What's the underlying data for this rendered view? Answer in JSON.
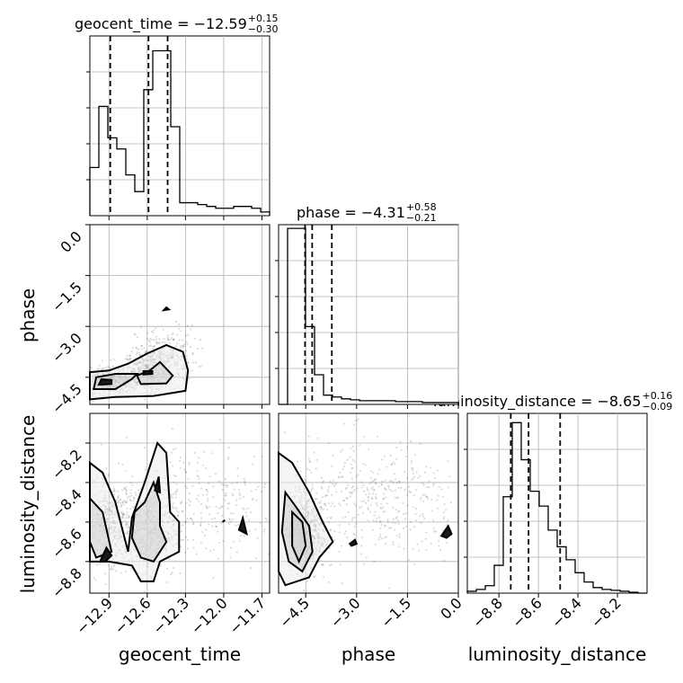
{
  "chart_data": {
    "type": "corner",
    "parameters": [
      "geocent_time",
      "phase",
      "luminosity_distance"
    ],
    "titles": [
      {
        "param": "geocent_time",
        "prefix": "geocent_time = ",
        "value": "−12.59",
        "plus": "+0.15",
        "minus": "−0.30"
      },
      {
        "param": "phase",
        "prefix": "phase = ",
        "value": "−4.31",
        "plus": "+0.58",
        "minus": "−0.21"
      },
      {
        "param": "luminosity_distance",
        "prefix": "luminosity_distance = ",
        "value": "−8.65",
        "plus": "+0.16",
        "minus": "−0.09"
      }
    ],
    "axis_labels": {
      "x": [
        "geocent_time",
        "phase",
        "luminosity_distance"
      ],
      "y": [
        "phase",
        "luminosity_distance"
      ]
    },
    "ranges": {
      "geocent_time": [
        -13.05,
        -11.64
      ],
      "phase": [
        -5.3,
        0.0
      ],
      "luminosity_distance": [
        -8.96,
        -8.05
      ]
    },
    "ticks": {
      "geocent_time": {
        "values": [
          -12.9,
          -12.6,
          -12.3,
          -12.0,
          -11.7
        ],
        "labels": [
          "−12.9",
          "−12.6",
          "−12.3",
          "−12.0",
          "−11.7"
        ]
      },
      "phase": {
        "values": [
          -4.5,
          -3.0,
          -1.5,
          0.0
        ],
        "labels": [
          "−4.5",
          "−3.0",
          "−1.5",
          "0.0"
        ]
      },
      "luminosity_distance": {
        "values": [
          -8.8,
          -8.6,
          -8.4,
          -8.2
        ],
        "labels": [
          "−8.8",
          "−8.6",
          "−8.4",
          "−8.2"
        ]
      }
    },
    "quantiles": {
      "geocent_time": [
        -12.89,
        -12.59,
        -12.44
      ],
      "phase": [
        -4.52,
        -4.31,
        -3.73
      ],
      "luminosity_distance": [
        -8.74,
        -8.65,
        -8.49
      ]
    },
    "histograms": {
      "geocent_time": [
        0.26,
        0.59,
        0.42,
        0.36,
        0.22,
        0.13,
        0.68,
        0.89,
        0.89,
        0.48,
        0.07,
        0.07,
        0.06,
        0.05,
        0.04,
        0.04,
        0.05,
        0.05,
        0.04,
        0.02
      ],
      "phase": [
        0.0,
        0.95,
        0.95,
        0.42,
        0.16,
        0.05,
        0.04,
        0.03,
        0.025,
        0.02,
        0.02,
        0.02,
        0.02,
        0.015,
        0.015,
        0.015,
        0.01,
        0.01,
        0.01,
        0.01
      ],
      "luminosity_distance": [
        0.01,
        0.02,
        0.04,
        0.15,
        0.52,
        0.92,
        0.72,
        0.55,
        0.47,
        0.34,
        0.25,
        0.18,
        0.11,
        0.06,
        0.03,
        0.02,
        0.015,
        0.01,
        0.005,
        0.0
      ]
    },
    "hist_ymax": 0.97,
    "points": {
      "phase_vs_geocent_time": [
        {
          "cx": -12.9,
          "cy": -4.6,
          "sx": 0.12,
          "sy": 0.18,
          "n": 400
        },
        {
          "cx": -12.6,
          "cy": -4.3,
          "sx": 0.1,
          "sy": 0.3,
          "n": 350
        },
        {
          "cx": -12.45,
          "cy": -3.8,
          "sx": 0.12,
          "sy": 0.4,
          "n": 200
        }
      ],
      "luminosity_distance_vs_geocent_time": [
        {
          "cx": -12.88,
          "cy": -8.6,
          "sx": 0.1,
          "sy": 0.1,
          "n": 350
        },
        {
          "cx": -12.58,
          "cy": -8.65,
          "sx": 0.1,
          "sy": 0.1,
          "n": 350
        },
        {
          "cx": -12.2,
          "cy": -8.5,
          "sx": 0.4,
          "sy": 0.15,
          "n": 350
        }
      ],
      "luminosity_distance_vs_phase": [
        {
          "cx": -4.5,
          "cy": -8.65,
          "sx": 0.3,
          "sy": 0.1,
          "n": 500
        },
        {
          "cx": -2.5,
          "cy": -8.5,
          "sx": 1.3,
          "sy": 0.16,
          "n": 450
        }
      ]
    },
    "contours": {
      "phase_vs_geocent_time": [
        [
          [
            -13.05,
            -5.15
          ],
          [
            -12.85,
            -5.08
          ],
          [
            -12.55,
            -5.05
          ],
          [
            -12.3,
            -4.9
          ],
          [
            -12.28,
            -4.3
          ],
          [
            -12.32,
            -3.75
          ],
          [
            -12.45,
            -3.55
          ],
          [
            -12.6,
            -3.8
          ],
          [
            -12.75,
            -4.1
          ],
          [
            -12.9,
            -4.3
          ],
          [
            -13.05,
            -4.35
          ]
        ],
        [
          [
            -13.02,
            -4.85
          ],
          [
            -12.85,
            -4.85
          ],
          [
            -12.72,
            -4.55
          ],
          [
            -12.68,
            -4.4
          ],
          [
            -12.85,
            -4.4
          ],
          [
            -13.0,
            -4.5
          ]
        ],
        [
          [
            -12.65,
            -4.7
          ],
          [
            -12.45,
            -4.68
          ],
          [
            -12.4,
            -4.45
          ],
          [
            -12.5,
            -4.05
          ],
          [
            -12.58,
            -4.3
          ],
          [
            -12.68,
            -4.45
          ]
        ],
        [
          [
            -12.98,
            -4.72
          ],
          [
            -12.88,
            -4.7
          ],
          [
            -12.88,
            -4.58
          ],
          [
            -12.96,
            -4.56
          ]
        ],
        [
          [
            -12.63,
            -4.42
          ],
          [
            -12.56,
            -4.4
          ],
          [
            -12.56,
            -4.32
          ],
          [
            -12.63,
            -4.32
          ]
        ],
        [
          [
            -12.47,
            -2.52
          ],
          [
            -12.43,
            -2.5
          ],
          [
            -12.45,
            -2.44
          ]
        ]
      ],
      "luminosity_distance_vs_geocent_time": [
        [
          [
            -13.05,
            -8.3
          ],
          [
            -12.95,
            -8.35
          ],
          [
            -12.85,
            -8.5
          ],
          [
            -12.75,
            -8.75
          ],
          [
            -12.72,
            -8.58
          ],
          [
            -12.62,
            -8.4
          ],
          [
            -12.52,
            -8.2
          ],
          [
            -12.45,
            -8.25
          ],
          [
            -12.42,
            -8.55
          ],
          [
            -12.35,
            -8.6
          ],
          [
            -12.35,
            -8.75
          ],
          [
            -12.5,
            -8.8
          ],
          [
            -12.55,
            -8.9
          ],
          [
            -12.65,
            -8.9
          ],
          [
            -12.72,
            -8.82
          ],
          [
            -12.9,
            -8.8
          ],
          [
            -13.05,
            -8.8
          ]
        ],
        [
          [
            -13.05,
            -8.48
          ],
          [
            -12.95,
            -8.55
          ],
          [
            -12.88,
            -8.75
          ],
          [
            -13.0,
            -8.78
          ],
          [
            -13.05,
            -8.7
          ]
        ],
        [
          [
            -12.7,
            -8.55
          ],
          [
            -12.62,
            -8.5
          ],
          [
            -12.55,
            -8.4
          ],
          [
            -12.5,
            -8.5
          ],
          [
            -12.5,
            -8.62
          ],
          [
            -12.45,
            -8.7
          ],
          [
            -12.55,
            -8.8
          ],
          [
            -12.65,
            -8.78
          ],
          [
            -12.72,
            -8.68
          ]
        ],
        [
          [
            -12.97,
            -8.8
          ],
          [
            -12.92,
            -8.73
          ],
          [
            -12.88,
            -8.77
          ],
          [
            -12.93,
            -8.8
          ]
        ],
        [
          [
            -12.54,
            -8.44
          ],
          [
            -12.51,
            -8.37
          ],
          [
            -12.5,
            -8.45
          ]
        ],
        [
          [
            -11.88,
            -8.64
          ],
          [
            -11.85,
            -8.58
          ],
          [
            -11.82,
            -8.66
          ]
        ],
        [
          [
            -12.01,
            -8.6
          ],
          [
            -11.99,
            -8.59
          ]
        ]
      ],
      "luminosity_distance_vs_phase": [
        [
          [
            -5.3,
            -8.25
          ],
          [
            -4.9,
            -8.3
          ],
          [
            -4.4,
            -8.45
          ],
          [
            -4.0,
            -8.6
          ],
          [
            -3.7,
            -8.7
          ],
          [
            -4.1,
            -8.78
          ],
          [
            -4.4,
            -8.88
          ],
          [
            -5.1,
            -8.92
          ],
          [
            -5.3,
            -8.85
          ]
        ],
        [
          [
            -5.1,
            -8.45
          ],
          [
            -4.8,
            -8.52
          ],
          [
            -4.4,
            -8.62
          ],
          [
            -4.3,
            -8.75
          ],
          [
            -4.6,
            -8.85
          ],
          [
            -5.0,
            -8.8
          ],
          [
            -5.2,
            -8.65
          ]
        ],
        [
          [
            -4.9,
            -8.55
          ],
          [
            -4.6,
            -8.6
          ],
          [
            -4.5,
            -8.72
          ],
          [
            -4.7,
            -8.8
          ],
          [
            -4.9,
            -8.72
          ]
        ],
        [
          [
            -3.2,
            -8.71
          ],
          [
            -3.05,
            -8.69
          ],
          [
            -3.0,
            -8.71
          ],
          [
            -3.15,
            -8.72
          ]
        ],
        [
          [
            -0.5,
            -8.67
          ],
          [
            -0.3,
            -8.62
          ],
          [
            -0.2,
            -8.66
          ],
          [
            -0.35,
            -8.68
          ]
        ]
      ]
    }
  }
}
